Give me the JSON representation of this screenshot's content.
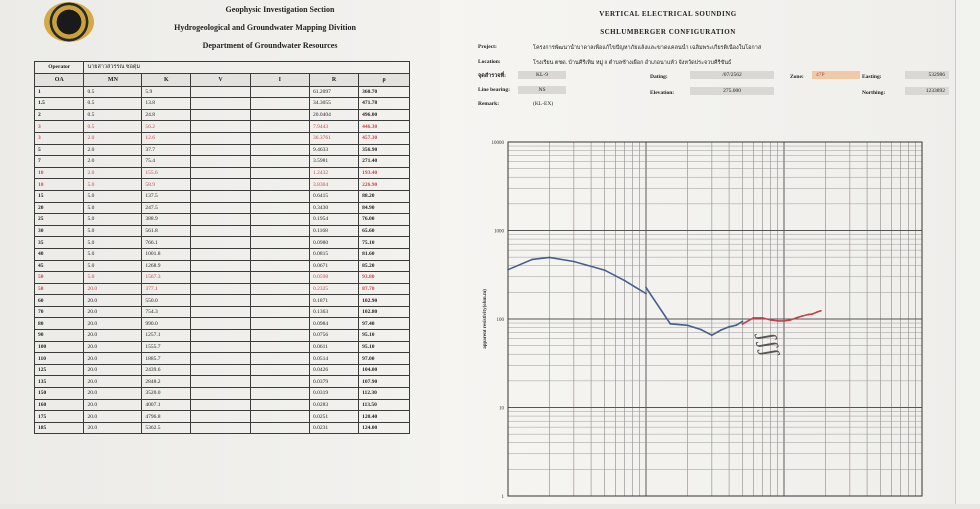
{
  "header": {
    "line1": "Geophysic Investigation Section",
    "line2": "Hydrogeological and Groundwater Mapping Divition",
    "line3": "Department of Groundwater Resources"
  },
  "table": {
    "operator_label": "Operator",
    "operator_value": "นายสาวสวรรณ ซอดุ่ม",
    "columns": [
      "OA",
      "MN",
      "K",
      "V",
      "I",
      "R",
      "ρ"
    ],
    "rows": [
      {
        "oa": "1",
        "mn": "0.5",
        "k": "5.9",
        "r": "61.2097",
        "rho": "360.70",
        "red": false
      },
      {
        "oa": "1.5",
        "mn": "0.5",
        "k": "13.8",
        "r": "34.3055",
        "rho": "471.78",
        "red": false
      },
      {
        "oa": "2",
        "mn": "0.5",
        "k": "24.8",
        "r": "20.0404",
        "rho": "496.00",
        "red": false
      },
      {
        "oa": "3",
        "mn": "0.5",
        "k": "56.2",
        "r": "7.9443",
        "rho": "446.30",
        "red": true
      },
      {
        "oa": "3",
        "mn": "2.0",
        "k": "12.6",
        "r": "36.3761",
        "rho": "457.30",
        "red": true
      },
      {
        "oa": "5",
        "mn": "2.0",
        "k": "37.7",
        "r": "9.4633",
        "rho": "356.90",
        "red": false
      },
      {
        "oa": "7",
        "mn": "2.0",
        "k": "75.4",
        "r": "3.5981",
        "rho": "271.40",
        "red": false
      },
      {
        "oa": "10",
        "mn": "2.0",
        "k": "155.6",
        "r": "1.2432",
        "rho": "193.40",
        "red": true
      },
      {
        "oa": "10",
        "mn": "5.0",
        "k": "58.9",
        "r": "3.8304",
        "rho": "226.90",
        "red": true
      },
      {
        "oa": "15",
        "mn": "5.0",
        "k": "137.5",
        "r": "0.6415",
        "rho": "88.20",
        "red": false
      },
      {
        "oa": "20",
        "mn": "5.0",
        "k": "247.5",
        "r": "0.3430",
        "rho": "84.90",
        "red": false
      },
      {
        "oa": "25",
        "mn": "5.0",
        "k": "388.9",
        "r": "0.1954",
        "rho": "76.00",
        "red": false
      },
      {
        "oa": "30",
        "mn": "5.0",
        "k": "561.8",
        "r": "0.1168",
        "rho": "65.60",
        "red": false
      },
      {
        "oa": "35",
        "mn": "5.0",
        "k": "766.1",
        "r": "0.0980",
        "rho": "75.10",
        "red": false
      },
      {
        "oa": "40",
        "mn": "5.0",
        "k": "1001.8",
        "r": "0.0815",
        "rho": "81.60",
        "red": false
      },
      {
        "oa": "45",
        "mn": "5.0",
        "k": "1268.9",
        "r": "0.0671",
        "rho": "85.20",
        "red": false
      },
      {
        "oa": "50",
        "mn": "5.0",
        "k": "1567.3",
        "r": "0.0598",
        "rho": "93.80",
        "red": true
      },
      {
        "oa": "50",
        "mn": "20.0",
        "k": "377.1",
        "r": "0.2325",
        "rho": "87.70",
        "red": true
      },
      {
        "oa": "60",
        "mn": "20.0",
        "k": "550.0",
        "r": "0.1871",
        "rho": "102.90",
        "red": false
      },
      {
        "oa": "70",
        "mn": "20.0",
        "k": "754.3",
        "r": "0.1363",
        "rho": "102.80",
        "red": false
      },
      {
        "oa": "80",
        "mn": "20.0",
        "k": "990.0",
        "r": "0.0984",
        "rho": "97.40",
        "red": false
      },
      {
        "oa": "90",
        "mn": "20.0",
        "k": "1257.1",
        "r": "0.0756",
        "rho": "95.10",
        "red": false
      },
      {
        "oa": "100",
        "mn": "20.0",
        "k": "1555.7",
        "r": "0.0611",
        "rho": "95.10",
        "red": false
      },
      {
        "oa": "110",
        "mn": "20.0",
        "k": "1885.7",
        "r": "0.0514",
        "rho": "97.00",
        "red": false
      },
      {
        "oa": "125",
        "mn": "20.0",
        "k": "2439.6",
        "r": "0.0426",
        "rho": "104.00",
        "red": false
      },
      {
        "oa": "135",
        "mn": "20.0",
        "k": "2848.2",
        "r": "0.0379",
        "rho": "107.90",
        "red": false
      },
      {
        "oa": "150",
        "mn": "20.0",
        "k": "3520.0",
        "r": "0.0319",
        "rho": "112.30",
        "red": false
      },
      {
        "oa": "160",
        "mn": "20.0",
        "k": "4007.1",
        "r": "0.0283",
        "rho": "113.50",
        "red": false
      },
      {
        "oa": "175",
        "mn": "20.0",
        "k": "4796.8",
        "r": "0.0251",
        "rho": "120.40",
        "red": false
      },
      {
        "oa": "185",
        "mn": "20.0",
        "k": "5362.5",
        "r": "0.0231",
        "rho": "124.00",
        "red": false
      }
    ]
  },
  "right": {
    "title1": "VERTICAL ELECTRICAL SOUNDING",
    "title2": "SCHLUMBERGER CONFIGURATION",
    "project_label": "Project:",
    "project_value": "โครงการพัฒนาน้ำบาดาลเพื่อแก้ไขปัญหาภัยแล้งและขาดแคลนน้ำ เฉลิมพระเกียรติเนื่องในโอกาส",
    "location_label": "Location:",
    "location_value": "โรงเรียน ตชด. บ้านคีรีเทิม หมู่ 8 ตำบลช้างเผือก อำเภอนาแห้ว จังหวัดประจวบคีรีขันธ์",
    "point_label": "จุดสำรวจที่:",
    "point_value": "KL-9",
    "dating_label": "Dating:",
    "dating_value": "/07/2562",
    "zone_label": "Zone:",
    "zone_value": "47P",
    "easting_label": "Easting:",
    "easting_value": "532986",
    "bearing_label": "Line bearing:",
    "bearing_value": "NS",
    "elevation_label": "Elevation:",
    "elevation_value": "275.000",
    "northing_label": "Northing:",
    "northing_value": "1233892",
    "remark_label": "Remark:",
    "remark_value": "(KL-EX)"
  },
  "chart_data": {
    "type": "line",
    "xscale": "log",
    "yscale": "log",
    "ylabel": "apparent resistivity(ohm.m)",
    "yticks": [
      "10000",
      "1000",
      "100",
      "10",
      "1"
    ],
    "ylim": [
      1,
      10000
    ],
    "xlim": [
      1,
      1000
    ],
    "series": [
      {
        "color": "#4a5f8c",
        "x": [
          1,
          1.5,
          2,
          3,
          5,
          7,
          10
        ],
        "y": [
          360.7,
          471.78,
          496,
          446.3,
          356.9,
          271.4,
          193.4
        ]
      },
      {
        "color": "#4a5f8c",
        "x": [
          10,
          15,
          20,
          25,
          30,
          35,
          40,
          45,
          50
        ],
        "y": [
          226.9,
          88.2,
          84.9,
          76,
          65.6,
          75.1,
          81.6,
          85.2,
          93.8
        ]
      },
      {
        "color": "#c0404e",
        "x": [
          50,
          60,
          70,
          80,
          90,
          100,
          110,
          125,
          135,
          150,
          160,
          175,
          185
        ],
        "y": [
          87.7,
          102.9,
          102.8,
          97.4,
          95.1,
          95.1,
          97,
          104,
          107.9,
          112.3,
          113.5,
          120.4,
          124
        ]
      }
    ]
  }
}
